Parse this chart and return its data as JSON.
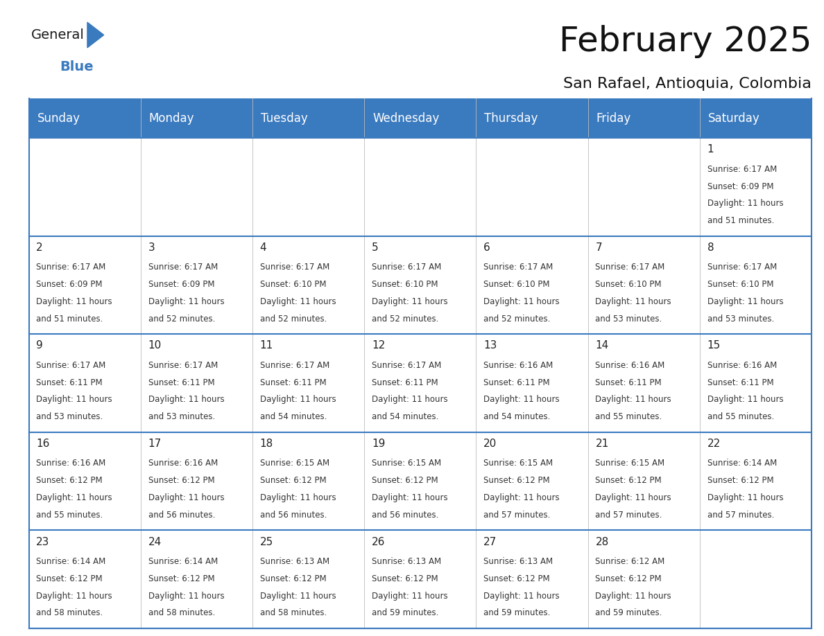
{
  "title": "February 2025",
  "subtitle": "San Rafael, Antioquia, Colombia",
  "days_of_week": [
    "Sunday",
    "Monday",
    "Tuesday",
    "Wednesday",
    "Thursday",
    "Friday",
    "Saturday"
  ],
  "header_bg": "#3a7abf",
  "header_text": "#ffffff",
  "cell_bg": "#ffffff",
  "cell_bg_alt": "#f0f4f8",
  "divider_color": "#3a7abf",
  "text_color": "#333333",
  "day_num_color": "#222222",
  "calendar": [
    [
      null,
      null,
      null,
      null,
      null,
      null,
      {
        "day": 1,
        "sunrise": "6:17 AM",
        "sunset": "6:09 PM",
        "hours": "11 hours",
        "minutes": "and 51 minutes."
      }
    ],
    [
      {
        "day": 2,
        "sunrise": "6:17 AM",
        "sunset": "6:09 PM",
        "hours": "11 hours",
        "minutes": "and 51 minutes."
      },
      {
        "day": 3,
        "sunrise": "6:17 AM",
        "sunset": "6:09 PM",
        "hours": "11 hours",
        "minutes": "and 52 minutes."
      },
      {
        "day": 4,
        "sunrise": "6:17 AM",
        "sunset": "6:10 PM",
        "hours": "11 hours",
        "minutes": "and 52 minutes."
      },
      {
        "day": 5,
        "sunrise": "6:17 AM",
        "sunset": "6:10 PM",
        "hours": "11 hours",
        "minutes": "and 52 minutes."
      },
      {
        "day": 6,
        "sunrise": "6:17 AM",
        "sunset": "6:10 PM",
        "hours": "11 hours",
        "minutes": "and 52 minutes."
      },
      {
        "day": 7,
        "sunrise": "6:17 AM",
        "sunset": "6:10 PM",
        "hours": "11 hours",
        "minutes": "and 53 minutes."
      },
      {
        "day": 8,
        "sunrise": "6:17 AM",
        "sunset": "6:10 PM",
        "hours": "11 hours",
        "minutes": "and 53 minutes."
      }
    ],
    [
      {
        "day": 9,
        "sunrise": "6:17 AM",
        "sunset": "6:11 PM",
        "hours": "11 hours",
        "minutes": "and 53 minutes."
      },
      {
        "day": 10,
        "sunrise": "6:17 AM",
        "sunset": "6:11 PM",
        "hours": "11 hours",
        "minutes": "and 53 minutes."
      },
      {
        "day": 11,
        "sunrise": "6:17 AM",
        "sunset": "6:11 PM",
        "hours": "11 hours",
        "minutes": "and 54 minutes."
      },
      {
        "day": 12,
        "sunrise": "6:17 AM",
        "sunset": "6:11 PM",
        "hours": "11 hours",
        "minutes": "and 54 minutes."
      },
      {
        "day": 13,
        "sunrise": "6:16 AM",
        "sunset": "6:11 PM",
        "hours": "11 hours",
        "minutes": "and 54 minutes."
      },
      {
        "day": 14,
        "sunrise": "6:16 AM",
        "sunset": "6:11 PM",
        "hours": "11 hours",
        "minutes": "and 55 minutes."
      },
      {
        "day": 15,
        "sunrise": "6:16 AM",
        "sunset": "6:11 PM",
        "hours": "11 hours",
        "minutes": "and 55 minutes."
      }
    ],
    [
      {
        "day": 16,
        "sunrise": "6:16 AM",
        "sunset": "6:12 PM",
        "hours": "11 hours",
        "minutes": "and 55 minutes."
      },
      {
        "day": 17,
        "sunrise": "6:16 AM",
        "sunset": "6:12 PM",
        "hours": "11 hours",
        "minutes": "and 56 minutes."
      },
      {
        "day": 18,
        "sunrise": "6:15 AM",
        "sunset": "6:12 PM",
        "hours": "11 hours",
        "minutes": "and 56 minutes."
      },
      {
        "day": 19,
        "sunrise": "6:15 AM",
        "sunset": "6:12 PM",
        "hours": "11 hours",
        "minutes": "and 56 minutes."
      },
      {
        "day": 20,
        "sunrise": "6:15 AM",
        "sunset": "6:12 PM",
        "hours": "11 hours",
        "minutes": "and 57 minutes."
      },
      {
        "day": 21,
        "sunrise": "6:15 AM",
        "sunset": "6:12 PM",
        "hours": "11 hours",
        "minutes": "and 57 minutes."
      },
      {
        "day": 22,
        "sunrise": "6:14 AM",
        "sunset": "6:12 PM",
        "hours": "11 hours",
        "minutes": "and 57 minutes."
      }
    ],
    [
      {
        "day": 23,
        "sunrise": "6:14 AM",
        "sunset": "6:12 PM",
        "hours": "11 hours",
        "minutes": "and 58 minutes."
      },
      {
        "day": 24,
        "sunrise": "6:14 AM",
        "sunset": "6:12 PM",
        "hours": "11 hours",
        "minutes": "and 58 minutes."
      },
      {
        "day": 25,
        "sunrise": "6:13 AM",
        "sunset": "6:12 PM",
        "hours": "11 hours",
        "minutes": "and 58 minutes."
      },
      {
        "day": 26,
        "sunrise": "6:13 AM",
        "sunset": "6:12 PM",
        "hours": "11 hours",
        "minutes": "and 59 minutes."
      },
      {
        "day": 27,
        "sunrise": "6:13 AM",
        "sunset": "6:12 PM",
        "hours": "11 hours",
        "minutes": "and 59 minutes."
      },
      {
        "day": 28,
        "sunrise": "6:12 AM",
        "sunset": "6:12 PM",
        "hours": "11 hours",
        "minutes": "and 59 minutes."
      },
      null
    ]
  ],
  "logo_text_general": "General",
  "logo_text_blue": "Blue",
  "logo_color_general": "#1a1a1a",
  "logo_color_blue": "#3a7abf",
  "logo_triangle_color": "#3a7abf",
  "title_fontsize": 36,
  "subtitle_fontsize": 16,
  "header_fontsize": 12,
  "day_num_fontsize": 11,
  "cell_text_fontsize": 8.5
}
